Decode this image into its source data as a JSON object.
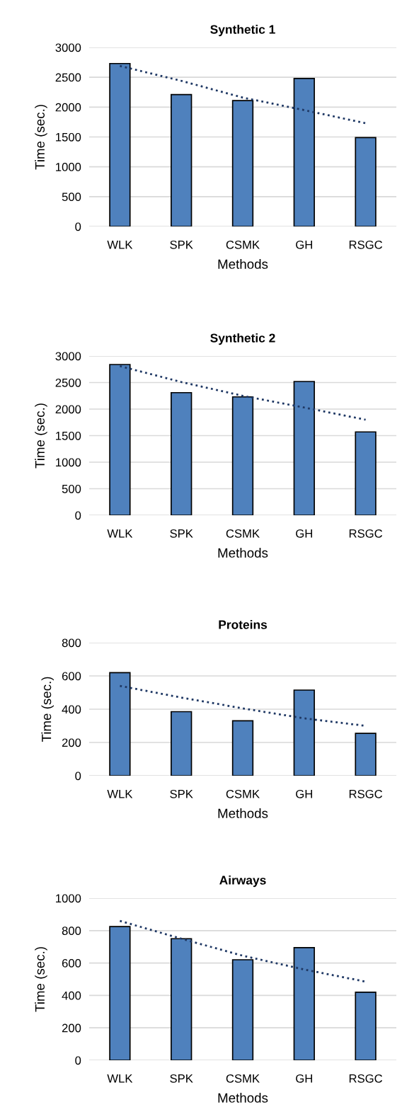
{
  "chart_data": [
    {
      "type": "bar",
      "title": "Synthetic 1",
      "xlabel": "Methods",
      "ylabel": "Time (sec.)",
      "categories": [
        "WLK",
        "SPK",
        "CSMK",
        "GH",
        "RSGC"
      ],
      "ylim": [
        0,
        3000
      ],
      "yticks": [
        0,
        500,
        1000,
        1500,
        2000,
        2500,
        3000
      ],
      "grid": "y",
      "series": [
        {
          "color": "#4f81bd",
          "values": [
            2730,
            2210,
            2110,
            2480,
            1490
          ]
        },
        {
          "type": "line",
          "color": "#1f3864",
          "line_style": "dotted",
          "values": [
            2690,
            2440,
            2160,
            1950,
            1730
          ]
        }
      ]
    },
    {
      "type": "bar",
      "title": "Synthetic 2",
      "xlabel": "Methods",
      "ylabel": "Time (sec.)",
      "categories": [
        "WLK",
        "SPK",
        "CSMK",
        "GH",
        "RSGC"
      ],
      "ylim": [
        0,
        3000
      ],
      "yticks": [
        0,
        500,
        1000,
        1500,
        2000,
        2500,
        3000
      ],
      "grid": "y",
      "series": [
        {
          "color": "#4f81bd",
          "values": [
            2840,
            2310,
            2230,
            2520,
            1570
          ]
        },
        {
          "type": "line",
          "color": "#1f3864",
          "line_style": "dotted",
          "values": [
            2810,
            2510,
            2250,
            2030,
            1800
          ]
        }
      ]
    },
    {
      "type": "bar",
      "title": "Proteins",
      "xlabel": "Methods",
      "ylabel": "Time (sec.)",
      "categories": [
        "WLK",
        "SPK",
        "CSMK",
        "GH",
        "RSGC"
      ],
      "ylim": [
        0,
        800
      ],
      "yticks": [
        0,
        200,
        400,
        600,
        800
      ],
      "grid": "y",
      "series": [
        {
          "color": "#4f81bd",
          "values": [
            620,
            385,
            330,
            515,
            255
          ]
        },
        {
          "type": "line",
          "color": "#1f3864",
          "line_style": "dotted",
          "values": [
            540,
            470,
            405,
            345,
            300
          ]
        }
      ]
    },
    {
      "type": "bar",
      "title": "Airways",
      "xlabel": "Methods",
      "ylabel": "Time (sec.)",
      "categories": [
        "WLK",
        "SPK",
        "CSMK",
        "GH",
        "RSGC"
      ],
      "ylim": [
        0,
        1000
      ],
      "yticks": [
        0,
        200,
        400,
        600,
        800,
        1000
      ],
      "grid": "y",
      "series": [
        {
          "color": "#4f81bd",
          "values": [
            825,
            750,
            620,
            695,
            420
          ]
        },
        {
          "type": "line",
          "color": "#1f3864",
          "line_style": "dotted",
          "values": [
            860,
            750,
            645,
            560,
            485
          ]
        }
      ]
    }
  ]
}
